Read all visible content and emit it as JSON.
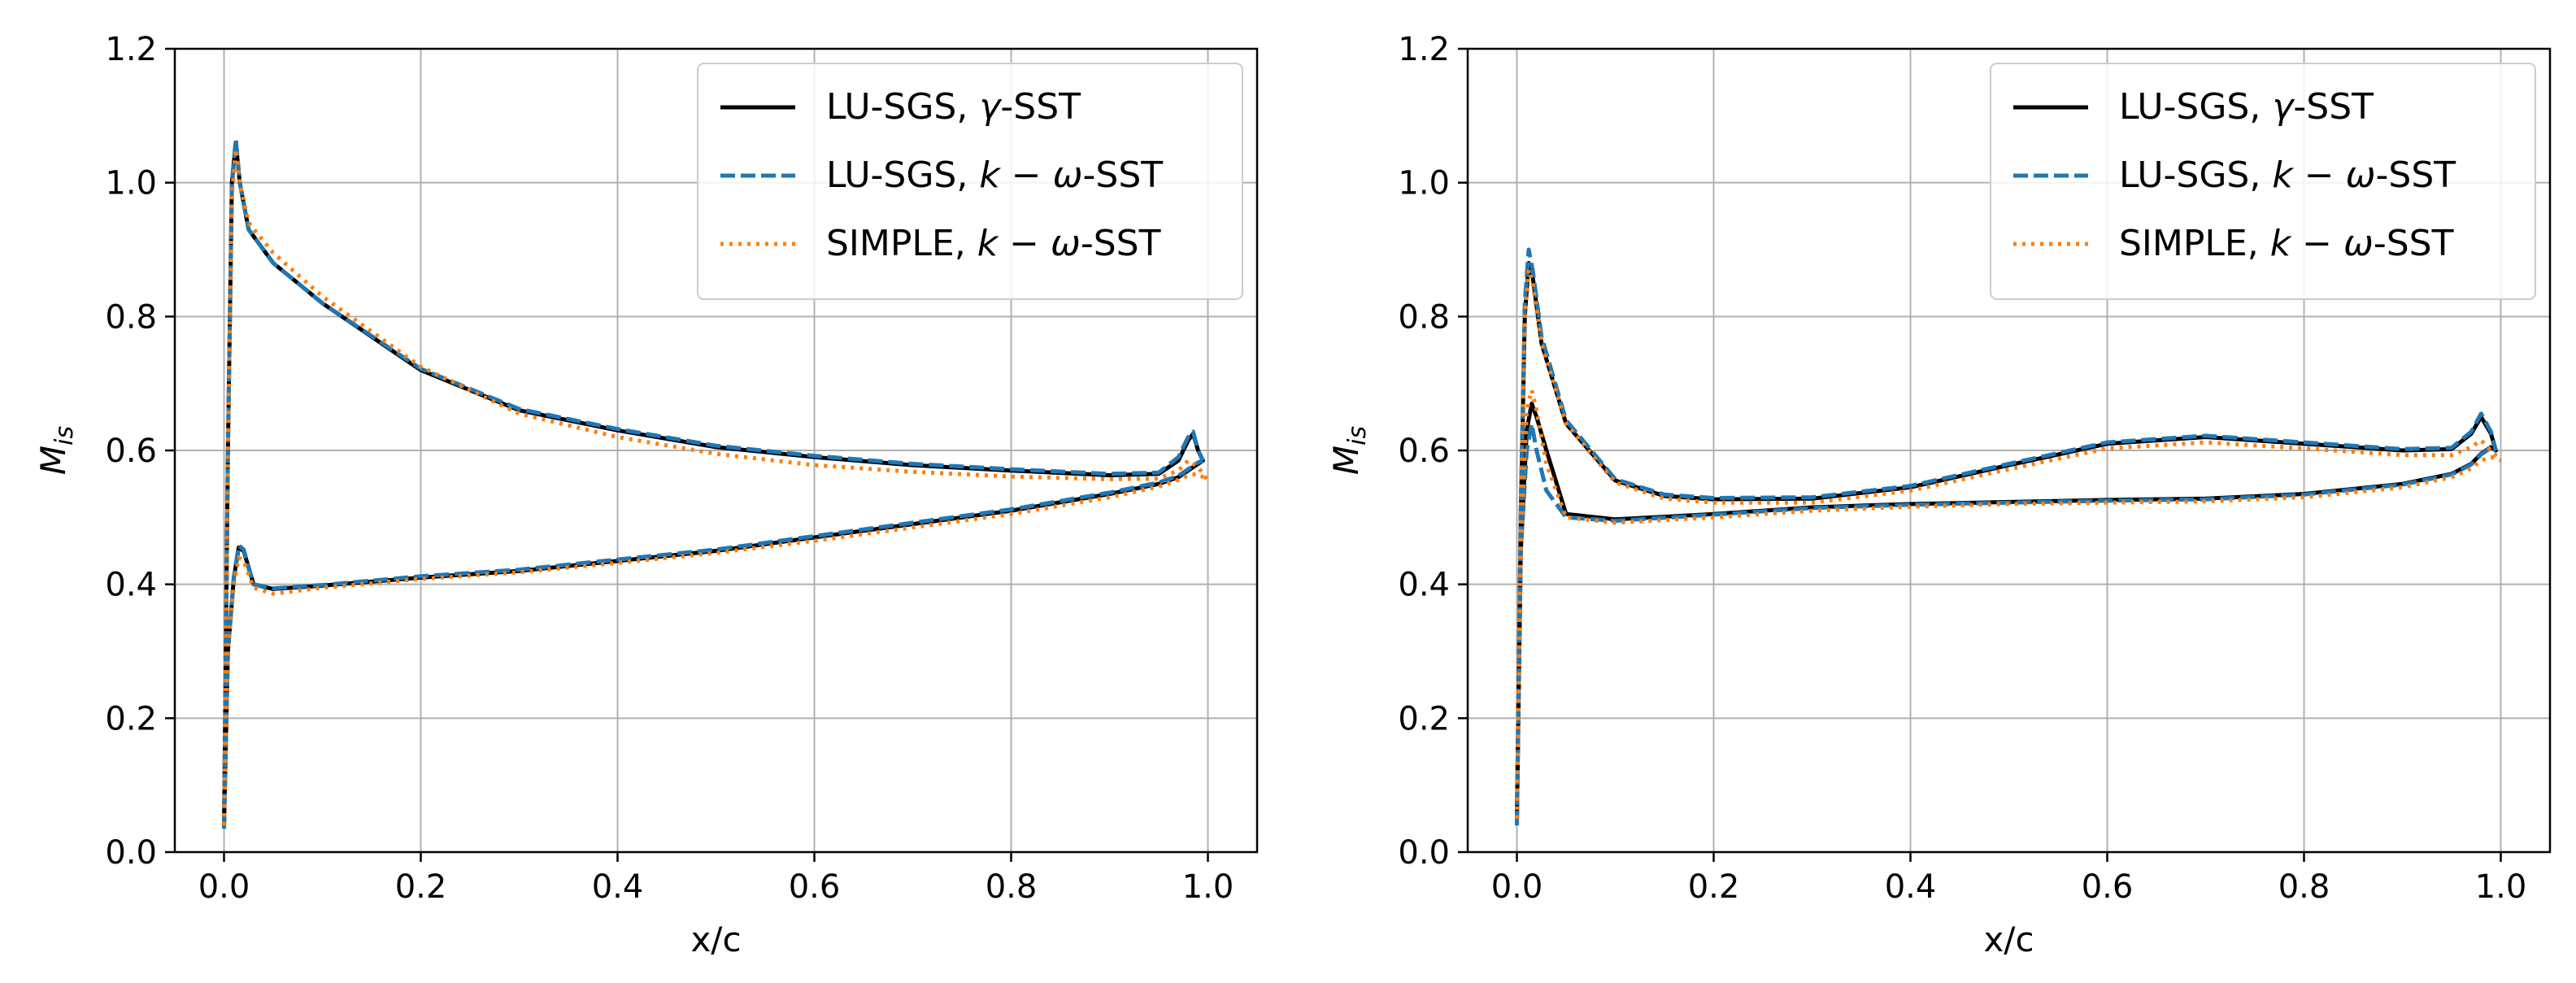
{
  "colors": {
    "black_series": "#000000",
    "blue_series": "#1f77b4",
    "orange_series": "#ff7f0e",
    "grid": "#b0b0b0"
  },
  "chart_data": [
    {
      "type": "line",
      "panel": "left",
      "xlabel": "x/c",
      "ylabel": "M_is",
      "ylabel_main": "M",
      "ylabel_sub": "is",
      "xlim": [
        -0.05,
        1.05
      ],
      "ylim": [
        0.0,
        1.2
      ],
      "xticks": [
        0.0,
        0.2,
        0.4,
        0.6,
        0.8,
        1.0
      ],
      "xtick_labels": [
        "0.0",
        "0.2",
        "0.4",
        "0.6",
        "0.8",
        "1.0"
      ],
      "yticks": [
        0.0,
        0.2,
        0.4,
        0.6,
        0.8,
        1.0,
        1.2
      ],
      "ytick_labels": [
        "0.0",
        "0.2",
        "0.4",
        "0.6",
        "0.8",
        "1.0",
        "1.2"
      ],
      "grid": true,
      "legend_position": "top-right",
      "legend": [
        {
          "prefix": "LU-SGS, ",
          "math": "γ",
          "suffix": "-SST",
          "style": "solid",
          "color": "#000000"
        },
        {
          "prefix": "LU-SGS, ",
          "math": "k − ω",
          "suffix": "-SST",
          "style": "dashed",
          "color": "#1f77b4"
        },
        {
          "prefix": "SIMPLE, ",
          "math": "k − ω",
          "suffix": "-SST",
          "style": "dotted",
          "color": "#ff7f0e"
        }
      ],
      "series": [
        {
          "name": "LU-SGS, γ-SST (suction side)",
          "style": "solid",
          "color": "#000000",
          "x": [
            0.0,
            0.004,
            0.008,
            0.012,
            0.016,
            0.025,
            0.05,
            0.1,
            0.2,
            0.3,
            0.4,
            0.5,
            0.6,
            0.7,
            0.8,
            0.9,
            0.95,
            0.97,
            0.98,
            0.985,
            0.99,
            0.995
          ],
          "y": [
            0.04,
            0.6,
            1.0,
            1.06,
            1.0,
            0.93,
            0.88,
            0.82,
            0.72,
            0.66,
            0.63,
            0.605,
            0.59,
            0.578,
            0.57,
            0.563,
            0.565,
            0.585,
            0.615,
            0.625,
            0.6,
            0.585
          ]
        },
        {
          "name": "LU-SGS, γ-SST (pressure side)",
          "style": "solid",
          "color": "#000000",
          "x": [
            0.0,
            0.004,
            0.01,
            0.015,
            0.02,
            0.03,
            0.05,
            0.1,
            0.2,
            0.3,
            0.4,
            0.5,
            0.6,
            0.7,
            0.8,
            0.9,
            0.95,
            0.97,
            0.98,
            0.99,
            0.995
          ],
          "y": [
            0.04,
            0.3,
            0.41,
            0.455,
            0.45,
            0.4,
            0.393,
            0.398,
            0.41,
            0.42,
            0.435,
            0.45,
            0.47,
            0.49,
            0.51,
            0.535,
            0.55,
            0.56,
            0.57,
            0.58,
            0.585
          ]
        },
        {
          "name": "LU-SGS, k-ω-SST (suction side)",
          "style": "dashed",
          "color": "#1f77b4",
          "x": [
            0.0,
            0.004,
            0.008,
            0.012,
            0.016,
            0.025,
            0.05,
            0.1,
            0.2,
            0.3,
            0.4,
            0.5,
            0.6,
            0.7,
            0.8,
            0.9,
            0.95,
            0.97,
            0.98,
            0.985,
            0.99,
            0.995
          ],
          "y": [
            0.035,
            0.6,
            1.0,
            1.065,
            1.0,
            0.93,
            0.88,
            0.82,
            0.722,
            0.662,
            0.632,
            0.607,
            0.592,
            0.58,
            0.572,
            0.565,
            0.567,
            0.59,
            0.62,
            0.628,
            0.6,
            0.585
          ]
        },
        {
          "name": "LU-SGS, k-ω-SST (pressure side)",
          "style": "dashed",
          "color": "#1f77b4",
          "x": [
            0.0,
            0.004,
            0.01,
            0.015,
            0.02,
            0.03,
            0.05,
            0.1,
            0.2,
            0.3,
            0.4,
            0.5,
            0.6,
            0.7,
            0.8,
            0.9,
            0.95,
            0.97,
            0.98,
            0.99,
            0.995
          ],
          "y": [
            0.035,
            0.3,
            0.41,
            0.458,
            0.452,
            0.4,
            0.394,
            0.399,
            0.412,
            0.422,
            0.437,
            0.452,
            0.472,
            0.492,
            0.512,
            0.537,
            0.552,
            0.562,
            0.572,
            0.582,
            0.585
          ]
        },
        {
          "name": "SIMPLE, k-ω-SST (suction side)",
          "style": "dotted",
          "color": "#ff7f0e",
          "x": [
            0.0,
            0.004,
            0.008,
            0.012,
            0.016,
            0.025,
            0.05,
            0.1,
            0.2,
            0.3,
            0.4,
            0.5,
            0.6,
            0.7,
            0.8,
            0.9,
            0.95,
            0.97,
            0.98,
            0.99,
            1.0
          ],
          "y": [
            0.04,
            0.6,
            0.98,
            1.05,
            1.0,
            0.94,
            0.895,
            0.83,
            0.725,
            0.655,
            0.62,
            0.595,
            0.578,
            0.568,
            0.561,
            0.557,
            0.558,
            0.57,
            0.585,
            0.575,
            0.555
          ]
        },
        {
          "name": "SIMPLE, k-ω-SST (pressure side)",
          "style": "dotted",
          "color": "#ff7f0e",
          "x": [
            0.0,
            0.004,
            0.01,
            0.015,
            0.02,
            0.03,
            0.05,
            0.1,
            0.2,
            0.3,
            0.4,
            0.5,
            0.6,
            0.7,
            0.8,
            0.9,
            0.95,
            0.97,
            0.98,
            0.99,
            1.0
          ],
          "y": [
            0.04,
            0.3,
            0.4,
            0.44,
            0.435,
            0.395,
            0.386,
            0.395,
            0.408,
            0.418,
            0.432,
            0.447,
            0.465,
            0.485,
            0.505,
            0.53,
            0.546,
            0.556,
            0.563,
            0.565,
            0.555
          ]
        }
      ]
    },
    {
      "type": "line",
      "panel": "right",
      "xlabel": "x/c",
      "ylabel": "M_is",
      "ylabel_main": "M",
      "ylabel_sub": "is",
      "xlim": [
        -0.05,
        1.05
      ],
      "ylim": [
        0.0,
        1.2
      ],
      "xticks": [
        0.0,
        0.2,
        0.4,
        0.6,
        0.8,
        1.0
      ],
      "xtick_labels": [
        "0.0",
        "0.2",
        "0.4",
        "0.6",
        "0.8",
        "1.0"
      ],
      "yticks": [
        0.0,
        0.2,
        0.4,
        0.6,
        0.8,
        1.0,
        1.2
      ],
      "ytick_labels": [
        "0.0",
        "0.2",
        "0.4",
        "0.6",
        "0.8",
        "1.0",
        "1.2"
      ],
      "grid": true,
      "legend_position": "top-right",
      "legend": [
        {
          "prefix": "LU-SGS, ",
          "math": "γ",
          "suffix": "-SST",
          "style": "solid",
          "color": "#000000"
        },
        {
          "prefix": "LU-SGS, ",
          "math": "k − ω",
          "suffix": "-SST",
          "style": "dashed",
          "color": "#1f77b4"
        },
        {
          "prefix": "SIMPLE, ",
          "math": "k − ω",
          "suffix": "-SST",
          "style": "dotted",
          "color": "#ff7f0e"
        }
      ],
      "series": [
        {
          "name": "LU-SGS, γ-SST (suction side)",
          "style": "solid",
          "color": "#000000",
          "x": [
            0.0,
            0.004,
            0.008,
            0.012,
            0.016,
            0.025,
            0.05,
            0.1,
            0.15,
            0.2,
            0.3,
            0.4,
            0.5,
            0.6,
            0.7,
            0.8,
            0.9,
            0.95,
            0.97,
            0.98,
            0.99,
            0.995
          ],
          "y": [
            0.05,
            0.5,
            0.8,
            0.88,
            0.86,
            0.76,
            0.64,
            0.555,
            0.532,
            0.527,
            0.528,
            0.545,
            0.578,
            0.61,
            0.62,
            0.61,
            0.6,
            0.602,
            0.625,
            0.65,
            0.625,
            0.6
          ]
        },
        {
          "name": "LU-SGS, γ-SST (pressure side)",
          "style": "solid",
          "color": "#000000",
          "x": [
            0.0,
            0.004,
            0.01,
            0.015,
            0.02,
            0.03,
            0.05,
            0.1,
            0.2,
            0.3,
            0.4,
            0.5,
            0.6,
            0.7,
            0.8,
            0.9,
            0.95,
            0.97,
            0.98,
            0.99,
            0.995
          ],
          "y": [
            0.05,
            0.45,
            0.63,
            0.67,
            0.65,
            0.6,
            0.505,
            0.497,
            0.505,
            0.515,
            0.52,
            0.523,
            0.526,
            0.528,
            0.535,
            0.55,
            0.565,
            0.58,
            0.595,
            0.605,
            0.6
          ]
        },
        {
          "name": "LU-SGS, k-ω-SST (suction side)",
          "style": "dashed",
          "color": "#1f77b4",
          "x": [
            0.0,
            0.004,
            0.008,
            0.012,
            0.016,
            0.025,
            0.05,
            0.1,
            0.15,
            0.2,
            0.3,
            0.4,
            0.5,
            0.6,
            0.7,
            0.8,
            0.9,
            0.95,
            0.97,
            0.98,
            0.99,
            0.995
          ],
          "y": [
            0.04,
            0.52,
            0.82,
            0.9,
            0.87,
            0.77,
            0.645,
            0.557,
            0.534,
            0.529,
            0.53,
            0.547,
            0.58,
            0.612,
            0.622,
            0.612,
            0.602,
            0.604,
            0.628,
            0.655,
            0.628,
            0.6
          ]
        },
        {
          "name": "LU-SGS, k-ω-SST (pressure side)",
          "style": "dashed",
          "color": "#1f77b4",
          "x": [
            0.0,
            0.004,
            0.01,
            0.015,
            0.02,
            0.03,
            0.05,
            0.1,
            0.2,
            0.3,
            0.4,
            0.5,
            0.6,
            0.7,
            0.8,
            0.9,
            0.95,
            0.97,
            0.98,
            0.99,
            0.995
          ],
          "y": [
            0.04,
            0.45,
            0.6,
            0.64,
            0.6,
            0.54,
            0.5,
            0.495,
            0.504,
            0.514,
            0.519,
            0.522,
            0.525,
            0.527,
            0.534,
            0.549,
            0.564,
            0.579,
            0.594,
            0.604,
            0.6
          ]
        },
        {
          "name": "SIMPLE, k-ω-SST (suction side)",
          "style": "dotted",
          "color": "#ff7f0e",
          "x": [
            0.0,
            0.004,
            0.008,
            0.012,
            0.016,
            0.025,
            0.05,
            0.1,
            0.15,
            0.2,
            0.3,
            0.4,
            0.5,
            0.6,
            0.7,
            0.8,
            0.9,
            0.95,
            0.97,
            0.98,
            0.99,
            1.0
          ],
          "y": [
            0.05,
            0.5,
            0.8,
            0.87,
            0.85,
            0.76,
            0.64,
            0.552,
            0.528,
            0.522,
            0.522,
            0.54,
            0.572,
            0.603,
            0.612,
            0.603,
            0.593,
            0.593,
            0.605,
            0.615,
            0.6,
            0.585
          ]
        },
        {
          "name": "SIMPLE, k-ω-SST (pressure side)",
          "style": "dotted",
          "color": "#ff7f0e",
          "x": [
            0.0,
            0.004,
            0.01,
            0.015,
            0.02,
            0.03,
            0.05,
            0.1,
            0.2,
            0.3,
            0.4,
            0.5,
            0.6,
            0.7,
            0.8,
            0.9,
            0.95,
            0.97,
            0.98,
            0.99,
            1.0
          ],
          "y": [
            0.05,
            0.45,
            0.66,
            0.69,
            0.66,
            0.58,
            0.5,
            0.492,
            0.5,
            0.51,
            0.516,
            0.52,
            0.522,
            0.524,
            0.53,
            0.545,
            0.56,
            0.573,
            0.585,
            0.59,
            0.585
          ]
        }
      ]
    }
  ]
}
